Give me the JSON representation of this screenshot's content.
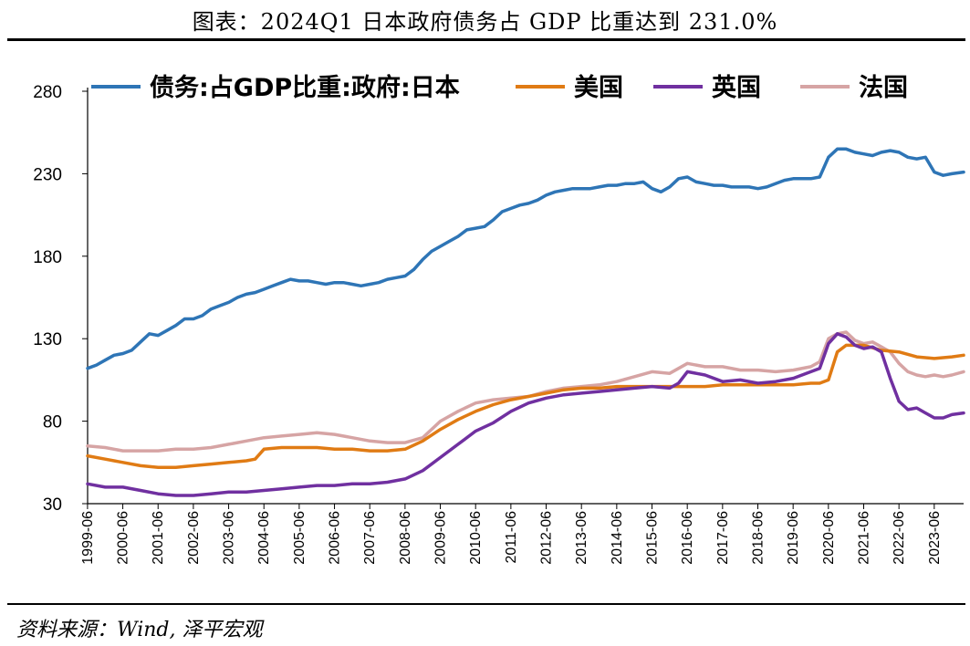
{
  "header": {
    "title": "图表：2024Q1 日本政府债务占 GDP 比重达到 231.0%"
  },
  "footer": {
    "source": "资料来源：Wind, 泽平宏观"
  },
  "chart_data": {
    "type": "line",
    "title": "图表：2024Q1 日本政府债务占 GDP 比重达到 231.0%",
    "xlabel": "",
    "ylabel": "",
    "ylim": [
      30,
      280
    ],
    "yticks": [
      30,
      80,
      130,
      180,
      230,
      280
    ],
    "xlim": [
      1999.42,
      2024.25
    ],
    "xticks": [
      "1999-06",
      "2000-06",
      "2001-06",
      "2002-06",
      "2003-06",
      "2004-06",
      "2005-06",
      "2006-06",
      "2007-06",
      "2008-06",
      "2009-06",
      "2010-06",
      "2011-06",
      "2012-06",
      "2013-06",
      "2014-06",
      "2015-06",
      "2016-06",
      "2017-06",
      "2018-06",
      "2019-06",
      "2020-06",
      "2021-06",
      "2022-06",
      "2023-06"
    ],
    "legend_position": "top",
    "series": [
      {
        "name": "债务:占GDP比重:政府:日本",
        "color": "#2E75B6",
        "x": [
          1999.42,
          1999.67,
          1999.92,
          2000.17,
          2000.42,
          2000.67,
          2000.92,
          2001.17,
          2001.42,
          2001.67,
          2001.92,
          2002.17,
          2002.42,
          2002.67,
          2002.92,
          2003.17,
          2003.42,
          2003.67,
          2003.92,
          2004.17,
          2004.42,
          2004.67,
          2004.92,
          2005.17,
          2005.42,
          2005.67,
          2005.92,
          2006.17,
          2006.42,
          2006.67,
          2006.92,
          2007.17,
          2007.42,
          2007.67,
          2007.92,
          2008.17,
          2008.42,
          2008.67,
          2008.92,
          2009.17,
          2009.42,
          2009.67,
          2009.92,
          2010.17,
          2010.42,
          2010.67,
          2010.92,
          2011.17,
          2011.42,
          2011.67,
          2011.92,
          2012.17,
          2012.42,
          2012.67,
          2012.92,
          2013.17,
          2013.42,
          2013.67,
          2013.92,
          2014.17,
          2014.42,
          2014.67,
          2014.92,
          2015.17,
          2015.42,
          2015.67,
          2015.92,
          2016.17,
          2016.42,
          2016.67,
          2016.92,
          2017.17,
          2017.42,
          2017.67,
          2017.92,
          2018.17,
          2018.42,
          2018.67,
          2018.92,
          2019.17,
          2019.42,
          2019.67,
          2019.92,
          2020.17,
          2020.42,
          2020.67,
          2020.92,
          2021.17,
          2021.42,
          2021.67,
          2021.92,
          2022.17,
          2022.42,
          2022.67,
          2022.92,
          2023.17,
          2023.42,
          2023.67,
          2023.92,
          2024.25
        ],
        "values": [
          112,
          114,
          117,
          120,
          121,
          123,
          128,
          133,
          132,
          135,
          138,
          142,
          142,
          144,
          148,
          150,
          152,
          155,
          157,
          158,
          160,
          162,
          164,
          166,
          165,
          165,
          164,
          163,
          164,
          164,
          163,
          162,
          163,
          164,
          166,
          167,
          168,
          172,
          178,
          183,
          186,
          189,
          192,
          196,
          197,
          198,
          202,
          207,
          209,
          211,
          212,
          214,
          217,
          219,
          220,
          221,
          221,
          221,
          222,
          223,
          223,
          224,
          224,
          225,
          221,
          219,
          222,
          227,
          228,
          225,
          224,
          223,
          223,
          222,
          222,
          222,
          221,
          222,
          224,
          226,
          227,
          227,
          227,
          228,
          240,
          245,
          245,
          243,
          242,
          241,
          243,
          244,
          243,
          240,
          239,
          240,
          231,
          229,
          230,
          231
        ]
      },
      {
        "name": "美国",
        "color": "#E07B14",
        "x": [
          1999.42,
          1999.92,
          2000.42,
          2000.92,
          2001.42,
          2001.92,
          2002.42,
          2002.92,
          2003.42,
          2003.92,
          2004.17,
          2004.42,
          2004.92,
          2005.42,
          2005.92,
          2006.42,
          2006.92,
          2007.42,
          2007.92,
          2008.42,
          2008.92,
          2009.42,
          2009.92,
          2010.42,
          2010.92,
          2011.42,
          2011.92,
          2012.42,
          2012.92,
          2013.42,
          2013.92,
          2014.42,
          2014.92,
          2015.42,
          2015.92,
          2016.42,
          2016.92,
          2017.42,
          2017.92,
          2018.42,
          2018.92,
          2019.42,
          2019.92,
          2020.17,
          2020.42,
          2020.67,
          2020.92,
          2021.42,
          2021.92,
          2022.42,
          2022.92,
          2023.42,
          2023.92,
          2024.25
        ],
        "values": [
          59,
          57,
          55,
          53,
          52,
          52,
          53,
          54,
          55,
          56,
          57,
          63,
          64,
          64,
          64,
          63,
          63,
          62,
          62,
          63,
          68,
          75,
          81,
          86,
          90,
          93,
          95,
          97,
          99,
          100,
          100,
          101,
          101,
          101,
          101,
          101,
          101,
          102,
          102,
          102,
          102,
          102,
          103,
          103,
          105,
          122,
          126,
          126,
          123,
          122,
          119,
          118,
          119,
          120
        ]
      },
      {
        "name": "英国",
        "color": "#7030A0",
        "x": [
          1999.42,
          1999.92,
          2000.42,
          2000.92,
          2001.42,
          2001.92,
          2002.42,
          2002.92,
          2003.42,
          2003.92,
          2004.42,
          2004.92,
          2005.42,
          2005.92,
          2006.42,
          2006.92,
          2007.42,
          2007.92,
          2008.42,
          2008.92,
          2009.42,
          2009.92,
          2010.42,
          2010.92,
          2011.42,
          2011.92,
          2012.42,
          2012.92,
          2013.42,
          2013.92,
          2014.42,
          2014.92,
          2015.42,
          2015.92,
          2016.17,
          2016.42,
          2016.92,
          2017.42,
          2017.92,
          2018.42,
          2018.92,
          2019.42,
          2019.92,
          2020.17,
          2020.42,
          2020.67,
          2020.92,
          2021.17,
          2021.42,
          2021.67,
          2021.92,
          2022.17,
          2022.42,
          2022.67,
          2022.92,
          2023.17,
          2023.42,
          2023.67,
          2023.92,
          2024.25
        ],
        "values": [
          42,
          40,
          40,
          38,
          36,
          35,
          35,
          36,
          37,
          37,
          38,
          39,
          40,
          41,
          41,
          42,
          42,
          43,
          45,
          50,
          58,
          66,
          74,
          79,
          86,
          91,
          94,
          96,
          97,
          98,
          99,
          100,
          101,
          100,
          103,
          110,
          108,
          104,
          105,
          103,
          104,
          106,
          110,
          112,
          127,
          133,
          131,
          126,
          124,
          125,
          122,
          106,
          92,
          87,
          88,
          85,
          82,
          82,
          84,
          85
        ]
      },
      {
        "name": "法国",
        "color": "#D6A4A4",
        "x": [
          1999.42,
          1999.92,
          2000.42,
          2000.92,
          2001.42,
          2001.92,
          2002.42,
          2002.92,
          2003.42,
          2003.92,
          2004.42,
          2004.92,
          2005.42,
          2005.92,
          2006.42,
          2006.92,
          2007.42,
          2007.92,
          2008.42,
          2008.92,
          2009.42,
          2009.92,
          2010.42,
          2010.92,
          2011.42,
          2011.92,
          2012.42,
          2012.92,
          2013.42,
          2013.92,
          2014.42,
          2014.92,
          2015.42,
          2015.92,
          2016.42,
          2016.92,
          2017.42,
          2017.92,
          2018.42,
          2018.92,
          2019.42,
          2019.92,
          2020.17,
          2020.42,
          2020.67,
          2020.92,
          2021.17,
          2021.42,
          2021.67,
          2021.92,
          2022.17,
          2022.42,
          2022.67,
          2022.92,
          2023.17,
          2023.42,
          2023.67,
          2023.92,
          2024.25
        ],
        "values": [
          65,
          64,
          62,
          62,
          62,
          63,
          63,
          64,
          66,
          68,
          70,
          71,
          72,
          73,
          72,
          70,
          68,
          67,
          67,
          70,
          80,
          86,
          91,
          93,
          94,
          95,
          98,
          100,
          101,
          102,
          104,
          107,
          110,
          109,
          115,
          113,
          113,
          111,
          111,
          110,
          111,
          113,
          116,
          130,
          133,
          134,
          129,
          127,
          128,
          125,
          122,
          115,
          110,
          108,
          107,
          108,
          107,
          108,
          110
        ]
      }
    ]
  }
}
